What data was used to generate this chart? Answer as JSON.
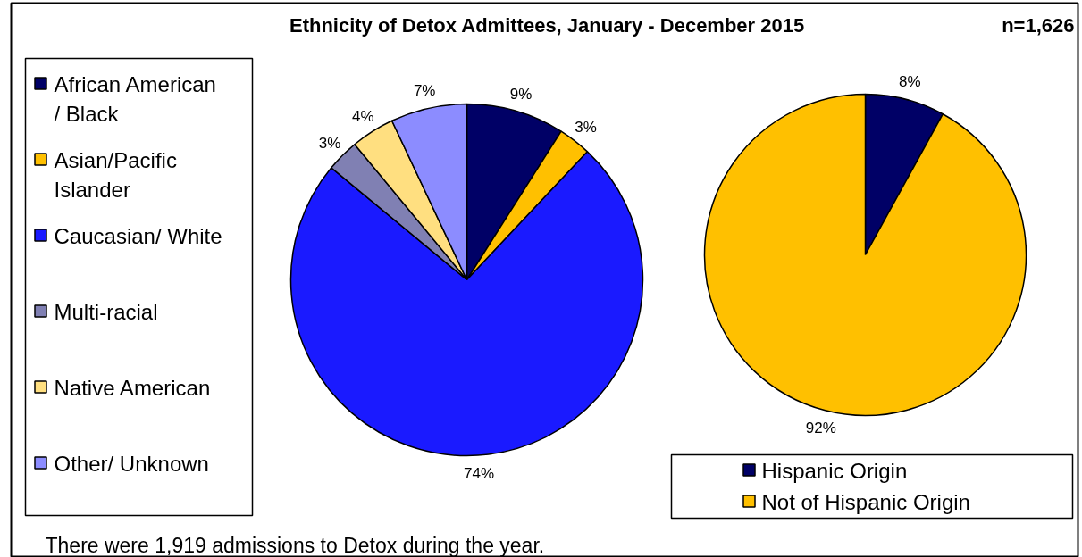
{
  "chart_data": [
    {
      "type": "pie",
      "title": "Ethnicity of Detox Admittees, January - December 2015",
      "categories": [
        "African American / Black",
        "Asian/Pacific Islander",
        "Caucasian/ White",
        "Multi-racial",
        "Native American",
        "Other/ Unknown"
      ],
      "values": [
        9,
        3,
        74,
        3,
        4,
        7
      ],
      "colors": [
        "#000066",
        "#ffc000",
        "#1a1aff",
        "#8080b3",
        "#ffdf80",
        "#8c8cff"
      ],
      "value_labels": [
        "9%",
        "3%",
        "74%",
        "3%",
        "4%",
        "7%"
      ],
      "legend": "left",
      "annotations": [
        "n=1,626",
        "There were 1,919 admissions to Detox during the year."
      ]
    },
    {
      "type": "pie",
      "categories": [
        "Hispanic Origin",
        "Not of Hispanic Origin"
      ],
      "values": [
        8,
        92
      ],
      "colors": [
        "#000066",
        "#ffc000"
      ],
      "value_labels": [
        "8%",
        "92%"
      ],
      "legend": "bottom"
    }
  ]
}
